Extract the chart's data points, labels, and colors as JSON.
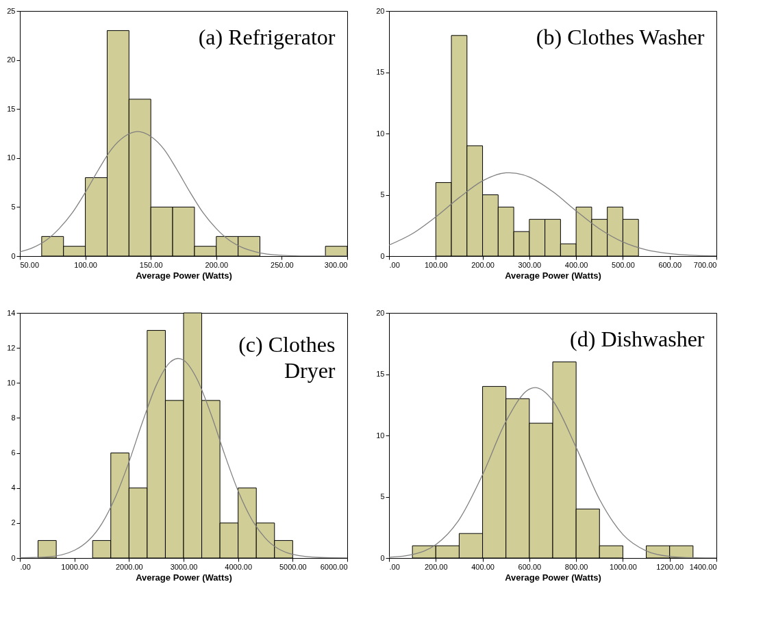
{
  "chart_data": [
    {
      "type": "histogram",
      "title": "(a) Refrigerator",
      "xlabel": "Average Power (Watts)",
      "color": "#d1cd96",
      "bins": [
        66.67,
        83.33,
        100,
        116.67,
        133.33,
        150,
        166.67,
        183.33,
        200,
        216.67,
        233.33,
        250,
        266.67,
        283.33,
        300
      ],
      "values": [
        2,
        1,
        8,
        23,
        16,
        5,
        5,
        1,
        2,
        2,
        0,
        0,
        0,
        1
      ],
      "xlim": [
        50,
        300
      ],
      "xticks": [
        {
          "value": 50,
          "label": "50.00"
        },
        {
          "value": 100,
          "label": "100.00"
        },
        {
          "value": 150,
          "label": "150.00"
        },
        {
          "value": 200,
          "label": "200.00"
        },
        {
          "value": 250,
          "label": "250.00"
        },
        {
          "value": 300,
          "label": "300.00"
        }
      ],
      "ylim": [
        0,
        25
      ],
      "yticks": [
        0,
        5,
        10,
        15,
        20,
        25
      ],
      "series": [
        {
          "type": "line",
          "color": "#808080",
          "x": [
            50,
            60,
            70,
            80,
            90,
            100,
            110,
            120,
            130,
            140,
            150,
            160,
            170,
            180,
            190,
            200,
            210,
            220,
            230,
            250,
            270,
            300
          ],
          "values": [
            0.43,
            0.86,
            1.6,
            2.8,
            4.4,
            6.5,
            8.8,
            10.9,
            12.2,
            12.7,
            12.2,
            10.9,
            8.8,
            6.5,
            4.4,
            2.8,
            1.6,
            0.86,
            0.43,
            0.08,
            0.01,
            0
          ]
        }
      ]
    },
    {
      "type": "histogram",
      "title": "(b) Clothes Washer",
      "xlabel": "Average Power (Watts)",
      "color": "#d1cd96",
      "bins": [
        100,
        133.33,
        166.67,
        200,
        233.33,
        266.67,
        300,
        333.33,
        366.67,
        400,
        433.33,
        466.67,
        500,
        533.33
      ],
      "values": [
        6,
        18,
        9,
        5,
        4,
        2,
        3,
        3,
        1,
        4,
        3,
        4,
        3
      ],
      "xlim": [
        0,
        700
      ],
      "xticks": [
        {
          "value": 0,
          "label": ".00"
        },
        {
          "value": 100,
          "label": "100.00"
        },
        {
          "value": 200,
          "label": "200.00"
        },
        {
          "value": 300,
          "label": "300.00"
        },
        {
          "value": 400,
          "label": "400.00"
        },
        {
          "value": 500,
          "label": "500.00"
        },
        {
          "value": 600,
          "label": "600.00"
        },
        {
          "value": 700,
          "label": "700.00"
        }
      ],
      "ylim": [
        0,
        20
      ],
      "yticks": [
        0,
        5,
        10,
        15,
        20
      ],
      "series": [
        {
          "type": "line",
          "color": "#808080",
          "x": [
            0,
            50,
            100,
            150,
            200,
            250,
            258,
            300,
            350,
            400,
            450,
            500,
            550,
            600,
            650,
            700
          ],
          "values": [
            0.9,
            1.83,
            3.2,
            4.77,
            6.14,
            6.79,
            6.8,
            6.45,
            5.26,
            3.69,
            2.22,
            1.15,
            0.51,
            0.2,
            0.06,
            0.02
          ]
        }
      ]
    },
    {
      "type": "histogram",
      "title": "(c) Clothes Dryer",
      "xlabel": "Average Power (Watts)",
      "color": "#d1cd96",
      "bins": [
        333.33,
        666.67,
        1000,
        1333.33,
        1666.67,
        2000,
        2333.33,
        2666.67,
        3000,
        3333.33,
        3666.67,
        4000,
        4333.33,
        4666.67,
        5000
      ],
      "values": [
        1,
        0,
        0,
        1,
        6,
        4,
        13,
        9,
        14,
        9,
        2,
        4,
        2,
        1
      ],
      "xlim": [
        0,
        6000
      ],
      "xticks": [
        {
          "value": 0,
          "label": ".00"
        },
        {
          "value": 1000,
          "label": "1000.00"
        },
        {
          "value": 2000,
          "label": "2000.00"
        },
        {
          "value": 3000,
          "label": "3000.00"
        },
        {
          "value": 4000,
          "label": "4000.00"
        },
        {
          "value": 5000,
          "label": "5000.00"
        },
        {
          "value": 6000,
          "label": "6000.00"
        }
      ],
      "ylim": [
        0,
        14
      ],
      "yticks": [
        0,
        2,
        4,
        6,
        8,
        10,
        12,
        14
      ],
      "series": [
        {
          "type": "line",
          "color": "#808080",
          "x": [
            0,
            500,
            1000,
            1500,
            1750,
            2000,
            2250,
            2500,
            2750,
            2900,
            3000,
            3250,
            3500,
            3750,
            4000,
            4250,
            4500,
            5000,
            5500,
            6000
          ],
          "values": [
            0.01,
            0.06,
            0.44,
            1.95,
            3.47,
            5.49,
            7.79,
            9.87,
            11.17,
            11.4,
            11.3,
            10.2,
            8.24,
            5.94,
            3.83,
            2.2,
            1.13,
            0.21,
            0.03,
            0
          ]
        }
      ]
    },
    {
      "type": "histogram",
      "title": "(d) Dishwasher",
      "xlabel": "Average Power (Watts)",
      "color": "#d1cd96",
      "bins": [
        100,
        200,
        300,
        400,
        500,
        600,
        700,
        800,
        900,
        1000,
        1100,
        1200,
        1300
      ],
      "values": [
        1,
        1,
        2,
        14,
        13,
        11,
        16,
        4,
        1,
        0,
        1,
        1
      ],
      "xlim": [
        0,
        1400
      ],
      "xticks": [
        {
          "value": 0,
          "label": ".00"
        },
        {
          "value": 200,
          "label": "200.00"
        },
        {
          "value": 400,
          "label": "400.00"
        },
        {
          "value": 600,
          "label": "600.00"
        },
        {
          "value": 800,
          "label": "800.00"
        },
        {
          "value": 1000,
          "label": "1000.00"
        },
        {
          "value": 1200,
          "label": "1200.00"
        },
        {
          "value": 1400,
          "label": "1400.00"
        }
      ],
      "ylim": [
        0,
        20
      ],
      "yticks": [
        0,
        5,
        10,
        15,
        20
      ],
      "series": [
        {
          "type": "line",
          "color": "#808080",
          "x": [
            0,
            100,
            200,
            300,
            400,
            500,
            600,
            625,
            700,
            800,
            900,
            1000,
            1100,
            1200,
            1300,
            1400
          ],
          "values": [
            0.06,
            0.29,
            1.09,
            3.14,
            6.8,
            11.15,
            13.78,
            13.9,
            12.85,
            9.03,
            4.79,
            1.92,
            0.58,
            0.13,
            0.02,
            0
          ]
        }
      ]
    }
  ]
}
